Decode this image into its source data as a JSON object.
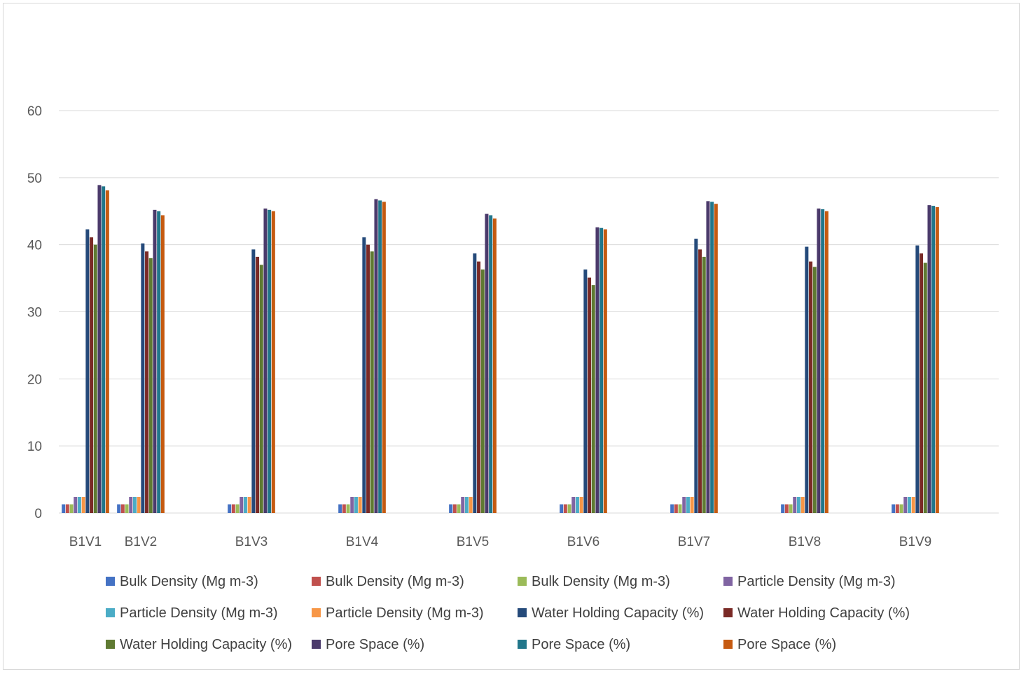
{
  "chart_data": {
    "type": "bar",
    "title": "",
    "xlabel": "",
    "ylabel": "",
    "ylim": [
      0,
      60
    ],
    "yticks": [
      0,
      10,
      20,
      30,
      40,
      50,
      60
    ],
    "grid": true,
    "legend_position": "bottom",
    "categories": [
      "B1V1",
      "B1V2",
      "B1V3",
      "B1V4",
      "B1V5",
      "B1V6",
      "B1V7",
      "B1V8",
      "B1V9"
    ],
    "series": [
      {
        "name": "Bulk Density (Mg m-3)",
        "color": "#4472C4",
        "values": [
          1.3,
          1.3,
          1.3,
          1.3,
          1.3,
          1.3,
          1.3,
          1.3,
          1.3
        ]
      },
      {
        "name": "Bulk Density (Mg m-3)",
        "color": "#C0504D",
        "values": [
          1.3,
          1.3,
          1.3,
          1.3,
          1.3,
          1.3,
          1.3,
          1.3,
          1.3
        ]
      },
      {
        "name": "Bulk Density (Mg m-3)",
        "color": "#9BBB59",
        "values": [
          1.3,
          1.3,
          1.3,
          1.3,
          1.3,
          1.3,
          1.3,
          1.3,
          1.3
        ]
      },
      {
        "name": "Particle Density (Mg m-3)",
        "color": "#8064A2",
        "values": [
          2.4,
          2.4,
          2.4,
          2.4,
          2.4,
          2.4,
          2.4,
          2.4,
          2.4
        ]
      },
      {
        "name": "Particle Density (Mg m-3)",
        "color": "#4BACC6",
        "values": [
          2.4,
          2.4,
          2.4,
          2.4,
          2.4,
          2.4,
          2.4,
          2.4,
          2.4
        ]
      },
      {
        "name": "Particle Density (Mg m-3)",
        "color": "#F79646",
        "values": [
          2.4,
          2.4,
          2.4,
          2.4,
          2.4,
          2.4,
          2.4,
          2.4,
          2.4
        ]
      },
      {
        "name": "Water Holding Capacity (%)",
        "color": "#254A7A",
        "values": [
          42.3,
          40.2,
          39.3,
          41.1,
          38.7,
          36.3,
          40.9,
          39.7,
          39.9
        ]
      },
      {
        "name": "Water Holding Capacity (%)",
        "color": "#7A2A26",
        "values": [
          41.1,
          39.0,
          38.2,
          40.0,
          37.5,
          35.1,
          39.3,
          37.5,
          38.7
        ]
      },
      {
        "name": "Water Holding Capacity (%)",
        "color": "#5F7A32",
        "values": [
          40.0,
          38.0,
          37.0,
          39.0,
          36.3,
          34.0,
          38.2,
          36.7,
          37.3
        ]
      },
      {
        "name": "Pore Space (%)",
        "color": "#4B3A6B",
        "values": [
          48.9,
          45.2,
          45.4,
          46.8,
          44.6,
          42.6,
          46.5,
          45.4,
          45.9
        ]
      },
      {
        "name": "Pore Space (%)",
        "color": "#21768A",
        "values": [
          48.7,
          45.0,
          45.2,
          46.6,
          44.4,
          42.5,
          46.4,
          45.3,
          45.8
        ]
      },
      {
        "name": "Pore Space (%)",
        "color": "#C55A11",
        "values": [
          48.1,
          44.4,
          45.0,
          46.4,
          43.9,
          42.3,
          46.1,
          45.0,
          45.6
        ]
      }
    ]
  }
}
